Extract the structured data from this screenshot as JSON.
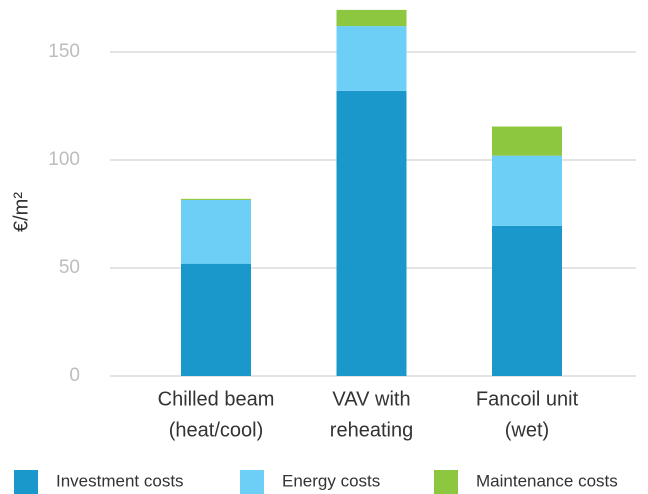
{
  "chart_data": {
    "type": "stacked_bar",
    "ylabel": "€/m²",
    "categories": [
      [
        "Chilled beam",
        "(heat/cool)"
      ],
      [
        "VAV with",
        "reheating"
      ],
      [
        "Fancoil unit",
        "(wet)"
      ]
    ],
    "series": [
      {
        "name": "Investment costs",
        "color": "#1b98cb",
        "values": [
          52,
          132,
          69.5
        ]
      },
      {
        "name": "Energy costs",
        "color": "#6dcff6",
        "values": [
          29.5,
          30,
          32.5
        ]
      },
      {
        "name": "Maintenance costs",
        "color": "#8dc63f",
        "values": [
          0.5,
          7.5,
          13.5
        ]
      }
    ],
    "ylim": [
      0,
      170
    ],
    "yticks": [
      0,
      50,
      100,
      150
    ],
    "grid": true,
    "legend": "bottom"
  }
}
